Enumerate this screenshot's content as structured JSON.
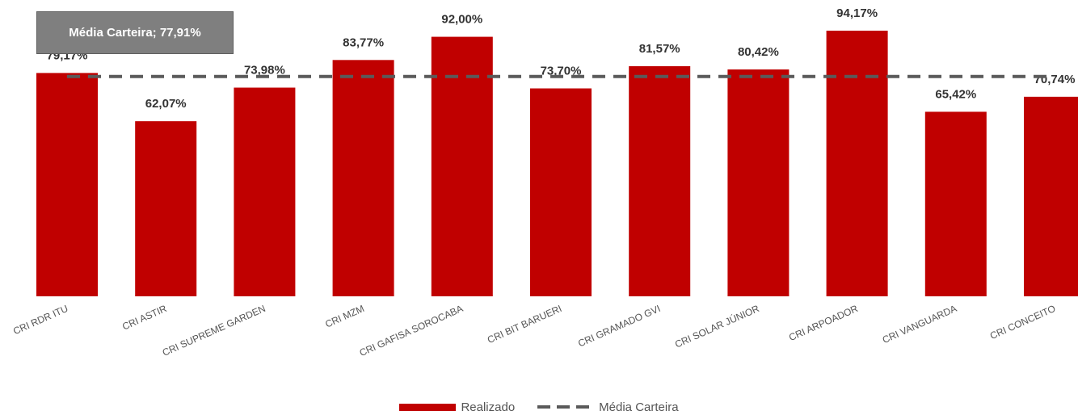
{
  "average_label": "Média Carteira; 77,91%",
  "legend": {
    "bar_label": "Realizado",
    "line_label": "Média Carteira"
  },
  "chart_data": {
    "type": "bar",
    "categories": [
      "CRI RDR ITU",
      "CRI ASTIR",
      "CRI SUPREME GARDEN",
      "CRI MZM",
      "CRI GAFISA SOROCABA",
      "CRI BIT BARUERI",
      "CRI GRAMADO GVI",
      "CRI SOLAR JÚNIOR",
      "CRI ARPOADOR",
      "CRI VANGUARDA",
      "CRI CONCEITO"
    ],
    "series": [
      {
        "name": "Realizado",
        "values": [
          79.17,
          62.07,
          73.98,
          83.77,
          92.0,
          73.7,
          81.57,
          80.42,
          94.17,
          65.42,
          70.74
        ],
        "labels": [
          "79,17%",
          "62,07%",
          "73,98%",
          "83,77%",
          "92,00%",
          "73,70%",
          "81,57%",
          "80,42%",
          "94,17%",
          "65,42%",
          "70,74%"
        ],
        "color": "#c00000"
      },
      {
        "name": "Média Carteira",
        "value": 77.91,
        "color": "#5a5a5a"
      }
    ],
    "ylim": [
      0,
      100
    ],
    "grid": false,
    "legend_position": "bottom"
  }
}
